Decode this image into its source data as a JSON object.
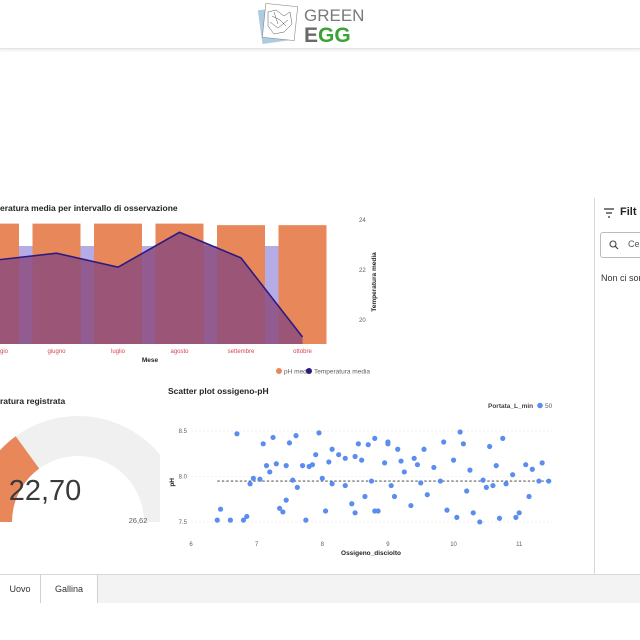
{
  "brand": {
    "line1": "GREEN",
    "line2_dark": "E",
    "line2_green": "GG"
  },
  "bar_line_chart": {
    "title": "eratura media per intervallo di osservazione",
    "x_axis_title": "Mese",
    "y_axis_right_title": "Temperatura media",
    "y_right_ticks": [
      "24",
      "22",
      "20"
    ],
    "legend": {
      "bar": "pH medio",
      "line": "Temperatura media"
    },
    "colors": {
      "bar": "#e8875a",
      "line": "#2b1a82",
      "area": "#8a4b7d"
    }
  },
  "gauge": {
    "title": "ratura registrata",
    "value_label": "22,70",
    "max_label": "26,62",
    "value_fraction": 0.3
  },
  "scatter": {
    "title": "Scatter plot ossigeno-pH",
    "x_axis_title": "Ossigeno_disciolto",
    "y_axis_title": "pH",
    "legend_title": "Portata_L_min",
    "legend_value": "50",
    "color": "#5b8def"
  },
  "filter_pane": {
    "title": "Filt",
    "search_placeholder": "Cer",
    "empty_text": "Non ci son"
  },
  "tabs": [
    {
      "label": "Uovo"
    },
    {
      "label": "Gallina"
    }
  ],
  "chart_data": [
    {
      "type": "bar",
      "title": "eratura media per intervallo di osservazione",
      "xlabel": "Mese",
      "ylabel": "Temperatura media",
      "categories": [
        "maggio",
        "giugno",
        "luglio",
        "agosto",
        "settembre",
        "ottobre"
      ],
      "tick_labels": [
        "gio",
        "giugno",
        "luglio",
        "agosto",
        "settembre",
        "ottobre"
      ],
      "series": [
        {
          "name": "pH medio",
          "kind": "bar",
          "values": [
            7.9,
            7.9,
            7.9,
            7.9,
            7.8,
            7.8
          ]
        },
        {
          "name": "Temperatura media",
          "kind": "line",
          "values": [
            22.6,
            22.9,
            22.3,
            23.8,
            22.7,
            19.3
          ]
        }
      ],
      "y_right_lim": [
        19,
        24.5
      ],
      "legend_position": "bottom"
    },
    {
      "type": "gauge",
      "title": "ratura registrata",
      "value": 22.7,
      "max": 26.62
    },
    {
      "type": "scatter",
      "title": "Scatter plot ossigeno-pH",
      "xlabel": "Ossigeno_disciolto",
      "ylabel": "pH",
      "x_ticks": [
        6,
        7,
        8,
        9,
        10,
        11
      ],
      "y_ticks": [
        7.5,
        8.0,
        8.5
      ],
      "xlim": [
        6,
        11.5
      ],
      "ylim": [
        7.4,
        8.6
      ],
      "trend_y": 7.95,
      "legend_title": "Portata_L_min",
      "series": [
        {
          "name": "50",
          "points": [
            [
              6.4,
              7.52
            ],
            [
              6.45,
              7.64
            ],
            [
              6.6,
              7.52
            ],
            [
              6.7,
              8.47
            ],
            [
              6.8,
              7.52
            ],
            [
              6.85,
              7.56
            ],
            [
              6.9,
              7.92
            ],
            [
              7.05,
              7.97
            ],
            [
              7.1,
              8.36
            ],
            [
              7.15,
              8.12
            ],
            [
              7.2,
              8.05
            ],
            [
              7.25,
              8.43
            ],
            [
              7.3,
              8.14
            ],
            [
              7.35,
              7.65
            ],
            [
              7.4,
              7.61
            ],
            [
              7.45,
              7.74
            ],
            [
              7.45,
              8.12
            ],
            [
              7.5,
              8.37
            ],
            [
              7.55,
              7.96
            ],
            [
              7.6,
              8.45
            ],
            [
              7.62,
              7.88
            ],
            [
              7.7,
              8.12
            ],
            [
              7.75,
              7.52
            ],
            [
              7.8,
              8.11
            ],
            [
              7.85,
              8.13
            ],
            [
              7.9,
              8.24
            ],
            [
              7.95,
              8.48
            ],
            [
              8.0,
              7.98
            ],
            [
              8.05,
              7.62
            ],
            [
              8.1,
              8.16
            ],
            [
              8.15,
              7.92
            ],
            [
              8.15,
              8.3
            ],
            [
              8.25,
              8.24
            ],
            [
              8.35,
              8.2
            ],
            [
              8.35,
              7.9
            ],
            [
              8.45,
              7.7
            ],
            [
              8.5,
              8.22
            ],
            [
              8.5,
              7.6
            ],
            [
              8.55,
              8.36
            ],
            [
              8.6,
              8.18
            ],
            [
              8.65,
              7.78
            ],
            [
              8.7,
              8.35
            ],
            [
              8.75,
              7.95
            ],
            [
              8.8,
              8.42
            ],
            [
              8.85,
              7.62
            ],
            [
              8.95,
              8.15
            ],
            [
              9.0,
              8.38
            ],
            [
              9.05,
              7.9
            ],
            [
              9.0,
              8.36
            ],
            [
              9.1,
              7.78
            ],
            [
              9.15,
              8.3
            ],
            [
              9.2,
              8.17
            ],
            [
              9.25,
              8.05
            ],
            [
              9.35,
              7.68
            ],
            [
              9.45,
              8.13
            ],
            [
              9.5,
              7.93
            ],
            [
              9.55,
              8.3
            ],
            [
              9.6,
              7.8
            ],
            [
              9.7,
              8.1
            ],
            [
              9.8,
              7.95
            ],
            [
              9.85,
              8.38
            ],
            [
              9.9,
              7.63
            ],
            [
              10.0,
              8.18
            ],
            [
              10.05,
              7.55
            ],
            [
              10.1,
              8.49
            ],
            [
              10.15,
              8.36
            ],
            [
              10.2,
              7.84
            ],
            [
              10.25,
              8.07
            ],
            [
              10.3,
              7.6
            ],
            [
              10.4,
              7.5
            ],
            [
              10.5,
              7.88
            ],
            [
              10.55,
              8.33
            ],
            [
              10.6,
              7.9
            ],
            [
              10.65,
              8.12
            ],
            [
              10.7,
              7.54
            ],
            [
              10.75,
              8.42
            ],
            [
              10.8,
              7.92
            ],
            [
              10.9,
              8.02
            ],
            [
              10.95,
              7.55
            ],
            [
              11.0,
              7.6
            ],
            [
              11.1,
              8.13
            ],
            [
              11.15,
              7.78
            ],
            [
              11.2,
              8.08
            ],
            [
              11.3,
              7.95
            ],
            [
              11.35,
              8.15
            ],
            [
              11.45,
              7.95
            ],
            [
              6.95,
              7.98
            ],
            [
              8.8,
              7.62
            ],
            [
              9.4,
              8.2
            ],
            [
              10.45,
              7.96
            ]
          ]
        }
      ]
    }
  ]
}
